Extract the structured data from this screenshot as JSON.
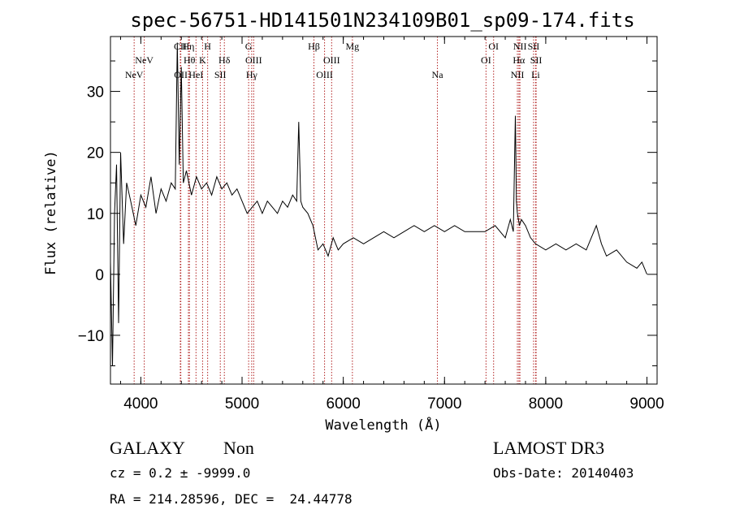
{
  "chart_data": {
    "type": "line",
    "title": "spec-56751-HD141501N234109B01_sp09-174.fits",
    "xlabel": "Wavelength (Å)",
    "ylabel": "Flux (relative)",
    "xlim": [
      3700,
      9100
    ],
    "ylim": [
      -18,
      39
    ],
    "xticks": [
      4000,
      5000,
      6000,
      7000,
      8000,
      9000
    ],
    "yticks": [
      -10,
      0,
      10,
      20,
      30
    ],
    "series": [
      {
        "name": "spectrum",
        "x": [
          3700,
          3720,
          3740,
          3760,
          3780,
          3800,
          3830,
          3860,
          3900,
          3950,
          4000,
          4050,
          4100,
          4150,
          4200,
          4250,
          4300,
          4340,
          4360,
          4380,
          4400,
          4420,
          4450,
          4500,
          4550,
          4600,
          4650,
          4700,
          4750,
          4800,
          4850,
          4900,
          4950,
          5000,
          5050,
          5100,
          5150,
          5200,
          5250,
          5300,
          5350,
          5400,
          5450,
          5500,
          5540,
          5560,
          5580,
          5600,
          5650,
          5700,
          5750,
          5800,
          5850,
          5900,
          5950,
          6000,
          6100,
          6200,
          6300,
          6400,
          6500,
          6600,
          6700,
          6800,
          6900,
          7000,
          7100,
          7200,
          7300,
          7400,
          7500,
          7600,
          7650,
          7680,
          7700,
          7710,
          7720,
          7740,
          7760,
          7800,
          7850,
          7900,
          8000,
          8100,
          8200,
          8300,
          8400,
          8450,
          8500,
          8550,
          8600,
          8700,
          8800,
          8900,
          8950,
          9000
        ],
        "y": [
          2,
          -15,
          10,
          18,
          -8,
          20,
          5,
          15,
          12,
          8,
          13,
          11,
          16,
          10,
          14,
          12,
          15,
          14,
          38,
          18,
          34,
          15,
          17,
          13,
          16,
          14,
          15,
          13,
          16,
          14,
          15,
          13,
          14,
          12,
          10,
          11,
          12,
          10,
          12,
          11,
          10,
          12,
          11,
          13,
          12,
          25,
          12,
          11,
          10,
          8,
          4,
          5,
          3,
          6,
          4,
          5,
          6,
          5,
          6,
          7,
          6,
          7,
          8,
          7,
          8,
          7,
          8,
          7,
          7,
          7,
          8,
          6,
          9,
          7,
          26,
          12,
          10,
          8,
          9,
          8,
          6,
          5,
          4,
          5,
          4,
          5,
          4,
          6,
          8,
          5,
          3,
          4,
          2,
          1,
          2,
          0
        ]
      }
    ],
    "lines": [
      {
        "label": "NeV",
        "x": 3934,
        "row": 3
      },
      {
        "label": "NeV",
        "x": 4034,
        "row": 2
      },
      {
        "label": "CII",
        "x": 4390,
        "row": 1
      },
      {
        "label": "OII",
        "x": 4395,
        "row": 3
      },
      {
        "label": "Hη",
        "x": 4470,
        "row": 1
      },
      {
        "label": "Hθ",
        "x": 4480,
        "row": 2
      },
      {
        "label": "HeI",
        "x": 4545,
        "row": 3
      },
      {
        "label": "K",
        "x": 4610,
        "row": 2
      },
      {
        "label": "H",
        "x": 4660,
        "row": 1
      },
      {
        "label": "SII",
        "x": 4785,
        "row": 3
      },
      {
        "label": "Hδ",
        "x": 4825,
        "row": 2
      },
      {
        "label": "G",
        "x": 5065,
        "row": 1
      },
      {
        "label": "OIII",
        "x": 5115,
        "row": 2
      },
      {
        "label": "Hγ",
        "x": 5095,
        "row": 3
      },
      {
        "label": "Hβ",
        "x": 5710,
        "row": 1
      },
      {
        "label": "OIII",
        "x": 5815,
        "row": 3
      },
      {
        "label": "OIII",
        "x": 5885,
        "row": 2
      },
      {
        "label": "Mg",
        "x": 6090,
        "row": 1
      },
      {
        "label": "Na",
        "x": 6930,
        "row": 3
      },
      {
        "label": "OI",
        "x": 7410,
        "row": 2
      },
      {
        "label": "OI",
        "x": 7485,
        "row": 1
      },
      {
        "label": "NII",
        "x": 7720,
        "row": 3
      },
      {
        "label": "Hα",
        "x": 7735,
        "row": 2
      },
      {
        "label": "NII",
        "x": 7745,
        "row": 1
      },
      {
        "label": "SII",
        "x": 7880,
        "row": 1
      },
      {
        "label": "SII",
        "x": 7905,
        "row": 2
      },
      {
        "label": "Li",
        "x": 7900,
        "row": 3
      }
    ]
  },
  "info": {
    "class": "GALAXY",
    "subclass": "Non",
    "cz_line": "cz = 0.2 ± -9999.0",
    "radec_line": "RA = 214.28596, DEC =  24.44778",
    "survey": "LAMOST DR3",
    "obs_date": "Obs-Date: 20140403"
  },
  "colors": {
    "line_marker": "#b22222",
    "spectrum": "#000000"
  }
}
